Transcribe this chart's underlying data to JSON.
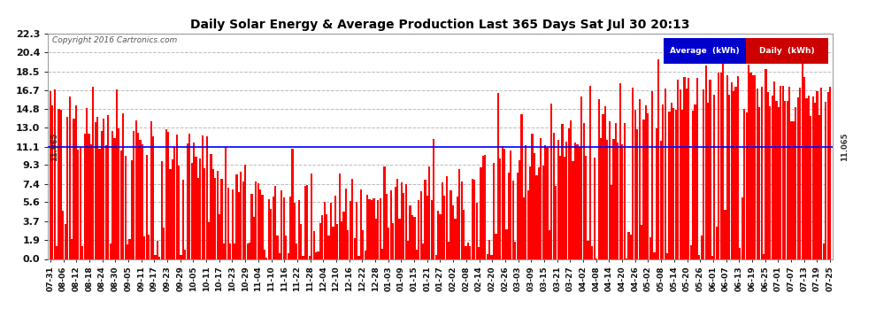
{
  "title": "Daily Solar Energy & Average Production Last 365 Days Sat Jul 30 20:13",
  "copyright": "Copyright 2016 Cartronics.com",
  "average_value": 11.065,
  "yticks": [
    0.0,
    1.9,
    3.7,
    5.6,
    7.4,
    9.3,
    11.1,
    13.0,
    14.8,
    16.7,
    18.5,
    20.4,
    22.3
  ],
  "bar_color": "#FF0000",
  "avg_line_color": "#0000FF",
  "bg_color": "#FFFFFF",
  "plot_bg_color": "#FFFFFF",
  "grid_color": "#BBBBBB",
  "title_color": "#000000",
  "legend_avg_bg": "#0000CC",
  "legend_daily_bg": "#CC0000",
  "xtick_labels": [
    "07-31",
    "08-06",
    "08-12",
    "08-18",
    "08-24",
    "08-30",
    "09-05",
    "09-11",
    "09-17",
    "09-23",
    "09-29",
    "10-05",
    "10-11",
    "10-17",
    "10-23",
    "10-29",
    "11-04",
    "11-10",
    "11-16",
    "11-22",
    "11-28",
    "12-04",
    "12-10",
    "12-16",
    "12-22",
    "12-28",
    "01-03",
    "01-09",
    "01-15",
    "01-21",
    "01-27",
    "02-02",
    "02-08",
    "02-14",
    "02-20",
    "02-26",
    "03-03",
    "03-09",
    "03-15",
    "03-21",
    "03-27",
    "04-02",
    "04-08",
    "04-14",
    "04-20",
    "04-26",
    "05-02",
    "05-08",
    "05-14",
    "05-20",
    "05-26",
    "06-01",
    "06-07",
    "06-13",
    "06-19",
    "06-25",
    "07-01",
    "07-07",
    "07-13",
    "07-19",
    "07-25"
  ],
  "n_days": 365,
  "figsize": [
    9.9,
    3.75
  ],
  "dpi": 100
}
